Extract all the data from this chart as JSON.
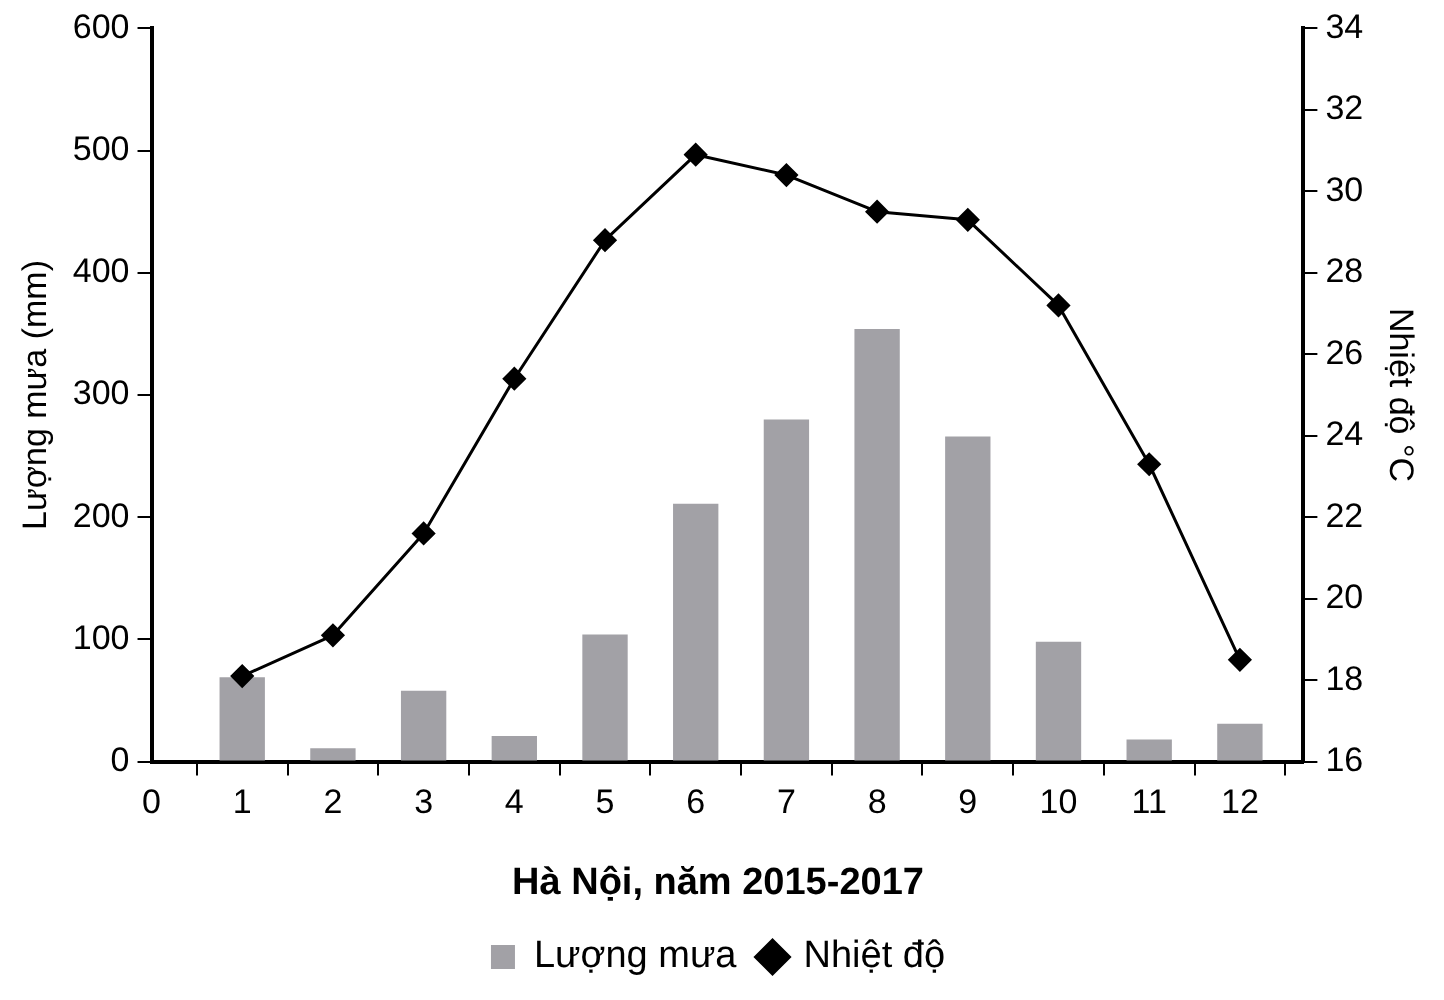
{
  "chart_data": {
    "type": "bar",
    "title": "Hà Nội, năm 2015-2017",
    "ylabel": "Lượng mưa (mm)",
    "y2label": "Nhiệt độ °C",
    "x": [
      1,
      2,
      3,
      4,
      5,
      6,
      7,
      8,
      9,
      10,
      11,
      12
    ],
    "series": [
      {
        "name": "Lượng mưa",
        "color": "#a2a1a6",
        "values": [
          69,
          11,
          58,
          21,
          104,
          211,
          280,
          354,
          266,
          98,
          18,
          31
        ]
      },
      {
        "name": "Nhiệt độ",
        "type": "line",
        "axis": "y2",
        "color": "#000000",
        "marker": "diamond",
        "values": [
          18.1,
          19.1,
          21.6,
          25.4,
          28.8,
          30.9,
          30.4,
          29.5,
          29.3,
          27.2,
          23.3,
          18.5
        ]
      }
    ],
    "xlim": [
      0,
      12.7
    ],
    "xticks": [
      0,
      1,
      2,
      3,
      4,
      5,
      6,
      7,
      8,
      9,
      10,
      11,
      12
    ],
    "ylim": [
      0,
      600
    ],
    "yticks": [
      0,
      100,
      200,
      300,
      400,
      500,
      600
    ],
    "y2lim": [
      16,
      34
    ],
    "y2ticks": [
      16,
      18,
      20,
      22,
      24,
      26,
      28,
      30,
      32,
      34
    ],
    "grid": false,
    "legend": "bottom"
  }
}
